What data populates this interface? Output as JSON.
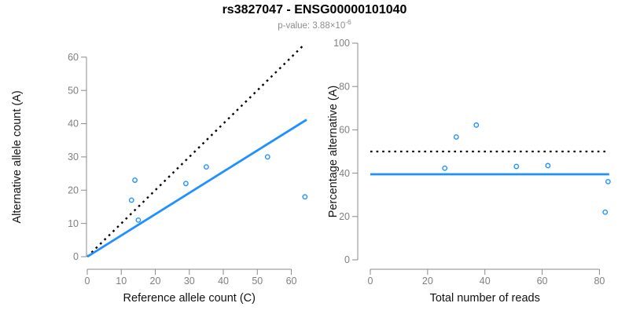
{
  "figure": {
    "title": "rs3827047 - ENSG00000101040",
    "subtitle_prefix": "p-value: 3.88×10",
    "subtitle_exponent": "-6"
  },
  "colors": {
    "accent_blue": "#1E90FF",
    "line_black": "#000000",
    "axis_gray": "#8A8A8A",
    "tick_label_gray": "#7F7F7F",
    "subtitle_gray": "#8C8C8C",
    "background": "#FFFFFF"
  },
  "chart_data": [
    {
      "id": "allele-counts",
      "type": "scatter",
      "title": "",
      "xlabel": "Reference allele count (C)",
      "ylabel": "Alternative allele count (A)",
      "xlim": [
        0,
        64.5
      ],
      "ylim": [
        0,
        64.2
      ],
      "xticks": [
        0,
        10,
        20,
        30,
        40,
        50,
        60
      ],
      "yticks": [
        0,
        10,
        20,
        30,
        40,
        50,
        60
      ],
      "grid": false,
      "legend": "none",
      "point_color": "#1E90FF",
      "points": [
        [
          13,
          17
        ],
        [
          14,
          23
        ],
        [
          15,
          11
        ],
        [
          29,
          22
        ],
        [
          35,
          27
        ],
        [
          53,
          30
        ],
        [
          64,
          18
        ]
      ],
      "lines": [
        {
          "name": "identity-line",
          "style": "dotted",
          "color": "#000000",
          "width": 2.4,
          "x1": 0,
          "y1": 0,
          "x2": 64,
          "y2": 64
        },
        {
          "name": "regression-line",
          "style": "solid",
          "color": "#1E90FF",
          "width": 2.8,
          "x1": 0,
          "y1": 0,
          "x2": 64.5,
          "y2": 41.2
        }
      ]
    },
    {
      "id": "percentage-alternative",
      "type": "scatter",
      "title": "",
      "xlabel": "Total number of reads",
      "ylabel": "Percentage alternative (A)",
      "xlim": [
        0,
        84
      ],
      "ylim": [
        0,
        100
      ],
      "xticks": [
        0,
        20,
        40,
        60,
        80
      ],
      "yticks": [
        0,
        20,
        40,
        60,
        80,
        100
      ],
      "grid": false,
      "legend": "none",
      "point_color": "#1E90FF",
      "points": [
        [
          26,
          42.3
        ],
        [
          30,
          56.7
        ],
        [
          37,
          62.2
        ],
        [
          51,
          43.1
        ],
        [
          62,
          43.5
        ],
        [
          82,
          22
        ],
        [
          83,
          36.1
        ]
      ],
      "lines": [
        {
          "name": "null-line-50pct",
          "style": "dotted",
          "color": "#000000",
          "width": 2.2,
          "hline": 50,
          "x1": 0,
          "x2": 83.4
        },
        {
          "name": "mean-percentage-line",
          "style": "solid",
          "color": "#1E90FF",
          "width": 2.8,
          "hline": 39.5,
          "x1": 0,
          "x2": 83.4
        }
      ]
    }
  ]
}
